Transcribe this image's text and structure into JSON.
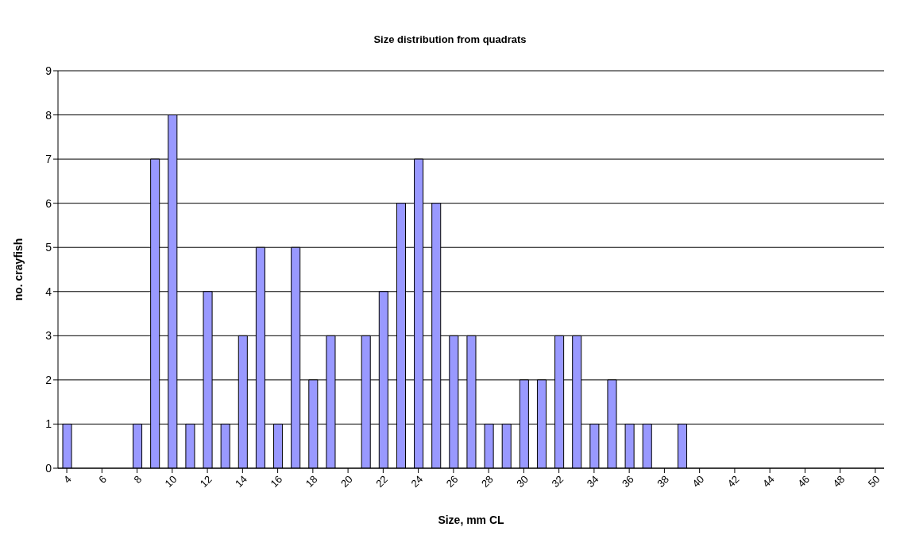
{
  "chart_data": {
    "type": "bar",
    "title": "Size distribution from quadrats",
    "xlabel": "Size, mm CL",
    "ylabel": "no. crayfish",
    "x": [
      4,
      5,
      6,
      7,
      8,
      9,
      10,
      11,
      12,
      13,
      14,
      15,
      16,
      17,
      18,
      19,
      20,
      21,
      22,
      23,
      24,
      25,
      26,
      27,
      28,
      29,
      30,
      31,
      32,
      33,
      34,
      35,
      36,
      37,
      38,
      39,
      40,
      41,
      42,
      43,
      44,
      45,
      46,
      47,
      48,
      49,
      50
    ],
    "values": [
      1,
      0,
      0,
      0,
      1,
      7,
      8,
      1,
      4,
      1,
      3,
      5,
      1,
      5,
      2,
      3,
      0,
      3,
      4,
      6,
      7,
      6,
      3,
      3,
      1,
      1,
      2,
      2,
      3,
      3,
      1,
      2,
      1,
      1,
      0,
      1,
      0,
      0,
      0,
      0,
      0,
      0,
      0,
      0,
      0,
      0,
      0
    ],
    "color": "#9999ff",
    "xlim": [
      3.5,
      50.5
    ],
    "xticks": [
      4,
      6,
      8,
      10,
      12,
      14,
      16,
      18,
      20,
      22,
      24,
      26,
      28,
      30,
      32,
      34,
      36,
      38,
      40,
      42,
      44,
      46,
      48,
      50
    ],
    "ylim": [
      0,
      9
    ],
    "yticks": [
      0,
      1,
      2,
      3,
      4,
      5,
      6,
      7,
      8,
      9
    ],
    "grid": "y"
  }
}
